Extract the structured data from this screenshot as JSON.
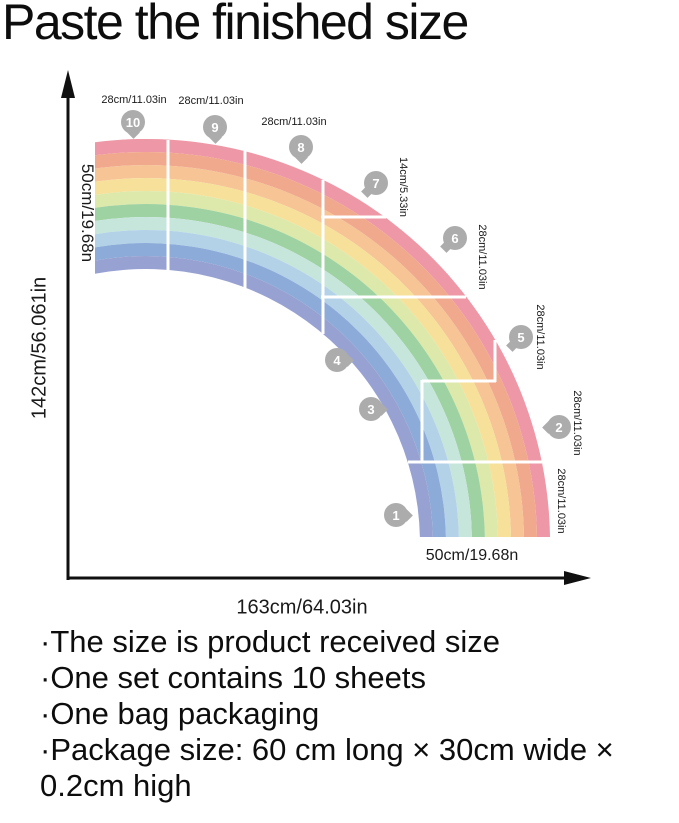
{
  "title": "Paste the finished size",
  "axes": {
    "y_label": "142cm/56.061in",
    "x_label": "163cm/64.03in"
  },
  "arc_end_labels": {
    "left": "50cm/19.68n",
    "bottom": "50cm/19.68n"
  },
  "rainbow": {
    "stripe_colors_outer_to_inner": [
      "#ee97a6",
      "#f1a98e",
      "#f6c495",
      "#f7e09a",
      "#dde9ab",
      "#9fd2a2",
      "#c6e6dc",
      "#b3d2e8",
      "#8cabd8",
      "#98a2d2"
    ],
    "badge_color": "#acacac"
  },
  "sheets": [
    {
      "number": "1",
      "size": "28cm/11.03in"
    },
    {
      "number": "2",
      "size": "28cm/11.03in"
    },
    {
      "number": "3",
      "size": ""
    },
    {
      "number": "4",
      "size": ""
    },
    {
      "number": "5",
      "size": "28cm/11.03in"
    },
    {
      "number": "6",
      "size": "28cm/11.03in"
    },
    {
      "number": "7",
      "size": "14cm/5.33in"
    },
    {
      "number": "8",
      "size": "28cm/11.03in"
    },
    {
      "number": "9",
      "size": "28cm/11.03in"
    },
    {
      "number": "10",
      "size": "28cm/11.03in"
    }
  ],
  "notes": [
    "·The size is product received size",
    "·One set contains 10 sheets",
    "·One bag packaging",
    "·Package size: 60 cm long × 30cm wide × 0.2cm high"
  ]
}
